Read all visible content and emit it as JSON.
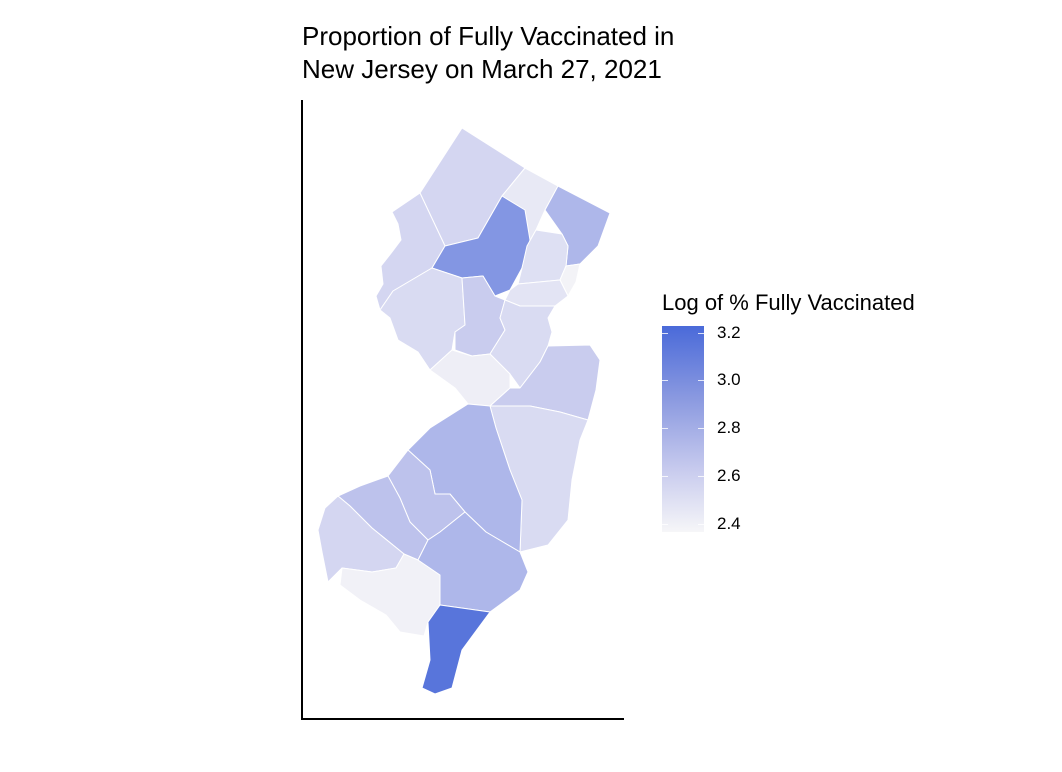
{
  "title_line1": "Proportion of Fully Vaccinated in",
  "title_line2": "New Jersey on March 27, 2021",
  "legend": {
    "title": "Log of % Fully Vaccinated",
    "ticks": [
      "3.2",
      "3.0",
      "2.8",
      "2.6",
      "2.4"
    ],
    "range": [
      2.37,
      3.25
    ],
    "colors": {
      "high": "#4a6ad9",
      "low": "#f6f6f8"
    }
  },
  "counties": [
    {
      "id": "sussex",
      "value": 2.7
    },
    {
      "id": "passaic",
      "value": 2.5
    },
    {
      "id": "bergen",
      "value": 2.9
    },
    {
      "id": "warren",
      "value": 2.7
    },
    {
      "id": "morris",
      "value": 3.05
    },
    {
      "id": "essex",
      "value": 2.6
    },
    {
      "id": "hudson",
      "value": 2.4
    },
    {
      "id": "union",
      "value": 2.55
    },
    {
      "id": "hunterdon",
      "value": 2.65
    },
    {
      "id": "somerset",
      "value": 2.8
    },
    {
      "id": "middlesex",
      "value": 2.65
    },
    {
      "id": "mercer",
      "value": 2.45
    },
    {
      "id": "monmouth",
      "value": 2.8
    },
    {
      "id": "ocean",
      "value": 2.65
    },
    {
      "id": "burlington",
      "value": 2.9
    },
    {
      "id": "camden",
      "value": 2.85
    },
    {
      "id": "gloucester",
      "value": 2.85
    },
    {
      "id": "salem",
      "value": 2.7
    },
    {
      "id": "cumberland",
      "value": 2.42
    },
    {
      "id": "atlantic",
      "value": 2.9
    },
    {
      "id": "cape-may",
      "value": 3.2
    }
  ]
}
